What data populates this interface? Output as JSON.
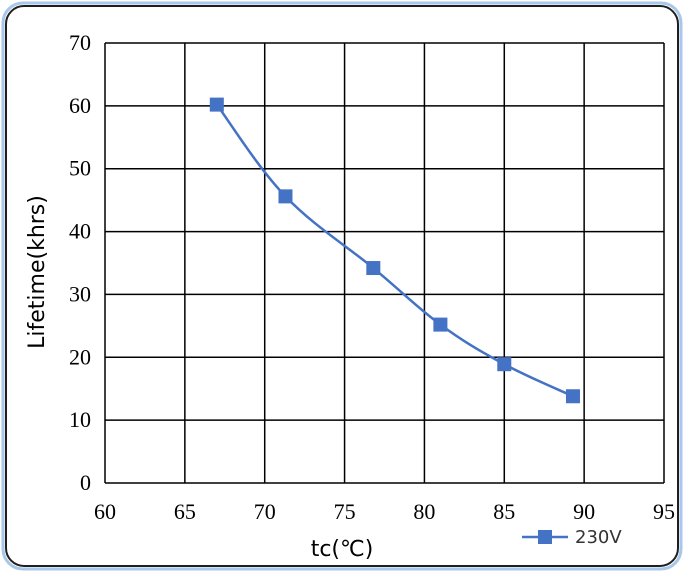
{
  "chart_data": {
    "type": "line",
    "xlabel": "tc(℃)",
    "ylabel": "Lifetime(khrs)",
    "xlim": [
      60,
      95
    ],
    "ylim": [
      0,
      70
    ],
    "x_ticks": [
      "60",
      "65",
      "70",
      "75",
      "80",
      "85",
      "90",
      "95"
    ],
    "y_ticks": [
      "0",
      "10",
      "20",
      "30",
      "40",
      "50",
      "60",
      "70"
    ],
    "grid": true,
    "legend_position": "bottom-right",
    "series": [
      {
        "name": "230V",
        "color": "#4472C4",
        "marker": "square",
        "x": [
          67.0,
          71.3,
          76.8,
          81.0,
          85.0,
          89.3
        ],
        "y": [
          60.2,
          45.6,
          34.2,
          25.2,
          18.9,
          13.8
        ]
      }
    ]
  }
}
